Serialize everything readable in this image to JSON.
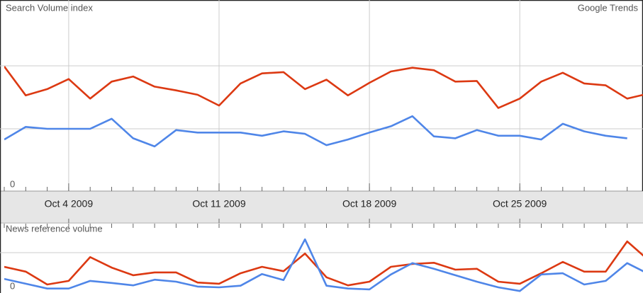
{
  "chart_data": [
    {
      "type": "line",
      "title": "Search Volume index",
      "annotation": "Google Trends",
      "x": [
        "2009-10-01",
        "2009-10-02",
        "2009-10-03",
        "2009-10-04",
        "2009-10-05",
        "2009-10-06",
        "2009-10-07",
        "2009-10-08",
        "2009-10-09",
        "2009-10-10",
        "2009-10-11",
        "2009-10-12",
        "2009-10-13",
        "2009-10-14",
        "2009-10-15",
        "2009-10-16",
        "2009-10-17",
        "2009-10-18",
        "2009-10-19",
        "2009-10-20",
        "2009-10-21",
        "2009-10-22",
        "2009-10-23",
        "2009-10-24",
        "2009-10-25",
        "2009-10-26",
        "2009-10-27",
        "2009-10-28",
        "2009-10-29",
        "2009-10-30",
        "2009-10-31"
      ],
      "xlim": [
        "2009-10-01",
        "2009-10-31"
      ],
      "xticks": [
        {
          "value": "2009-10-04",
          "label": "Oct 4 2009"
        },
        {
          "value": "2009-10-11",
          "label": "Oct 11 2009"
        },
        {
          "value": "2009-10-18",
          "label": "Oct 18 2009"
        },
        {
          "value": "2009-10-25",
          "label": "Oct 25 2009"
        }
      ],
      "ylim": [
        0,
        3
      ],
      "yticks": [
        0,
        {
          "value": 1,
          "label": null
        },
        {
          "value": 2,
          "label": null
        }
      ],
      "grid": true,
      "series": [
        {
          "color": "#dc3912",
          "values": [
            1.99,
            1.53,
            1.63,
            1.79,
            1.48,
            1.75,
            1.83,
            1.67,
            1.61,
            1.54,
            1.37,
            1.72,
            1.88,
            1.9,
            1.63,
            1.78,
            1.53,
            1.73,
            1.91,
            1.97,
            1.93,
            1.75,
            1.76,
            1.33,
            1.48,
            1.75,
            1.89,
            1.72,
            1.69,
            1.48,
            1.56
          ]
        },
        {
          "color": "#4f86e8",
          "values": [
            0.83,
            1.03,
            1.0,
            1.0,
            1.0,
            1.16,
            0.85,
            0.72,
            0.98,
            0.94,
            0.94,
            0.94,
            0.89,
            0.96,
            0.92,
            0.74,
            0.83,
            0.94,
            1.04,
            1.2,
            0.88,
            0.85,
            0.98,
            0.89,
            0.89,
            0.83,
            1.08,
            0.96,
            0.89,
            0.85,
            null
          ]
        }
      ]
    },
    {
      "type": "line",
      "title": "News reference volume",
      "x": [
        "2009-10-01",
        "2009-10-02",
        "2009-10-03",
        "2009-10-04",
        "2009-10-05",
        "2009-10-06",
        "2009-10-07",
        "2009-10-08",
        "2009-10-09",
        "2009-10-10",
        "2009-10-11",
        "2009-10-12",
        "2009-10-13",
        "2009-10-14",
        "2009-10-15",
        "2009-10-16",
        "2009-10-17",
        "2009-10-18",
        "2009-10-19",
        "2009-10-20",
        "2009-10-21",
        "2009-10-22",
        "2009-10-23",
        "2009-10-24",
        "2009-10-25",
        "2009-10-26",
        "2009-10-27",
        "2009-10-28",
        "2009-10-29",
        "2009-10-30",
        "2009-10-31"
      ],
      "xlim": [
        "2009-10-01",
        "2009-10-31"
      ],
      "ylim": [
        0,
        1.72
      ],
      "yticks": [
        0,
        {
          "value": 1,
          "label": null
        }
      ],
      "grid": true,
      "series": [
        {
          "color": "#dc3912",
          "values": [
            0.65,
            0.53,
            0.21,
            0.3,
            0.89,
            0.63,
            0.44,
            0.51,
            0.51,
            0.26,
            0.23,
            0.49,
            0.65,
            0.54,
            0.98,
            0.39,
            0.19,
            0.28,
            0.65,
            0.72,
            0.75,
            0.58,
            0.6,
            0.28,
            0.23,
            0.49,
            0.77,
            0.53,
            0.53,
            1.28,
            0.81
          ]
        },
        {
          "color": "#4f86e8",
          "values": [
            0.35,
            0.23,
            0.11,
            0.11,
            0.3,
            0.25,
            0.19,
            0.33,
            0.28,
            0.16,
            0.14,
            0.18,
            0.47,
            0.32,
            1.33,
            0.18,
            0.11,
            0.09,
            0.46,
            0.74,
            0.6,
            0.44,
            0.28,
            0.14,
            0.05,
            0.46,
            0.49,
            0.21,
            0.3,
            0.74,
            0.47
          ]
        }
      ]
    }
  ]
}
